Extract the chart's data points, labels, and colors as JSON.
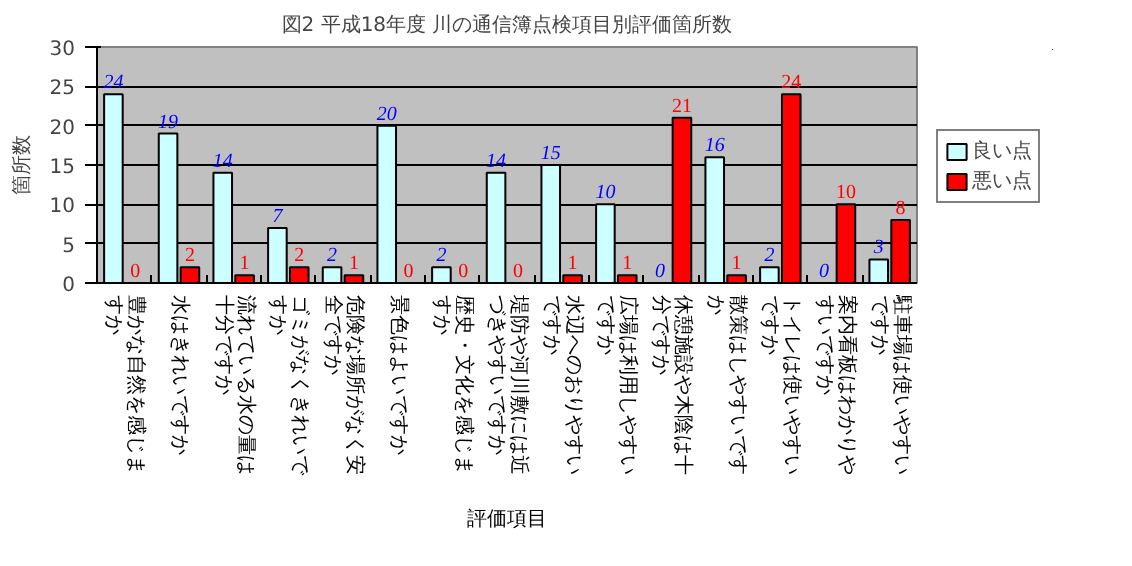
{
  "chart_data": {
    "type": "bar",
    "title": "図2 平成18年度 川の通信簿点検項目別評価箇所数",
    "xlabel": "評価項目",
    "ylabel": "箇所数",
    "categories": [
      "豊かな自然を感じますか",
      "水はきれいですか",
      "流れている水の量は十分ですか",
      "ゴミがなくきれいですか",
      "危険な場所がなく安全ですか",
      "景色はよいですか",
      "歴史・文化を感じますか",
      "堤防や河川敷には近づきやすいですか",
      "水辺へのおりやすいですか",
      "広場は利用しやすいですか",
      "休憩施設や木陰は十分ですか",
      "散策はしやすいですか",
      "トイレは使いやすいですか",
      "案内看板はわかりやすいですか",
      "駐車場は使いやすいですか"
    ],
    "series": [
      {
        "name": "良い点",
        "color": "#ccffff",
        "values": [
          24,
          19,
          14,
          7,
          2,
          20,
          2,
          14,
          15,
          10,
          0,
          16,
          2,
          0,
          3
        ]
      },
      {
        "name": "悪い点",
        "color": "#ff0000",
        "values": [
          0,
          2,
          1,
          2,
          1,
          0,
          0,
          0,
          1,
          1,
          21,
          1,
          24,
          10,
          8
        ]
      }
    ],
    "ylim": [
      0,
      30
    ],
    "yticks": [
      0,
      5,
      10,
      15,
      20,
      25,
      30
    ],
    "grid": "y",
    "legend": "right",
    "data_labels": true
  }
}
